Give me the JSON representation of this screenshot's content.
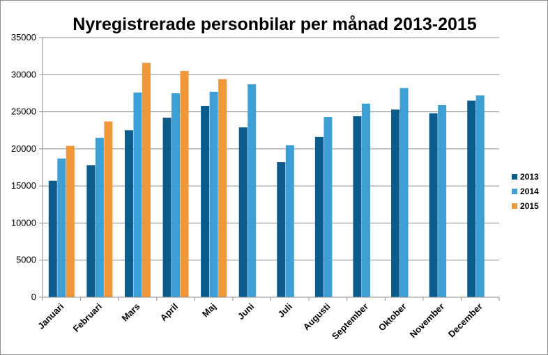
{
  "chart_data": {
    "type": "bar",
    "title": "Nyregistrerade personbilar per månad 2013-2015",
    "xlabel": "",
    "ylabel": "",
    "ylim": [
      0,
      35000
    ],
    "yticks": [
      "0",
      "5000",
      "10000",
      "15000",
      "20000",
      "25000",
      "30000",
      "35000"
    ],
    "grid": true,
    "legend_position": "right",
    "categories": [
      "Januari",
      "Februari",
      "Mars",
      "April",
      "Maj",
      "Juni",
      "Juli",
      "Augusti",
      "September",
      "Oktober",
      "November",
      "December"
    ],
    "series": [
      {
        "name": "2013",
        "color": "#0b5b8c",
        "values": [
          15700,
          17800,
          22500,
          24200,
          25800,
          22900,
          18200,
          21600,
          24400,
          25300,
          24800,
          26500
        ]
      },
      {
        "name": "2014",
        "color": "#3e9fd5",
        "values": [
          18700,
          21500,
          27600,
          27500,
          27700,
          28700,
          20500,
          24300,
          26100,
          28200,
          25900,
          27200
        ]
      },
      {
        "name": "2015",
        "color": "#f0973a",
        "values": [
          20400,
          23700,
          31600,
          30500,
          29400,
          null,
          null,
          null,
          null,
          null,
          null,
          null
        ]
      }
    ]
  }
}
